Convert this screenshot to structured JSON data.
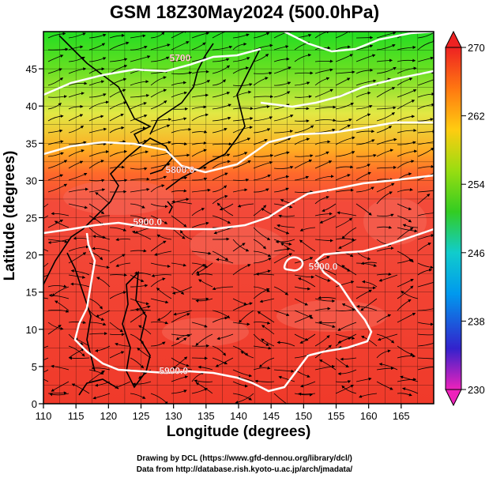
{
  "title": "GSM 18Z30May2024 (500.0hPa)",
  "xlabel": "Longitude (degrees)",
  "ylabel": "Latitude  (degrees)",
  "credits": [
    "Drawing by DCL (https://www.gfd-dennou.org/library/dcl/)",
    "Data from http://database.rish.kyoto-u.ac.jp/arch/jmadata/"
  ],
  "map": {
    "lon_range": [
      110,
      170
    ],
    "lat_range": [
      0,
      50
    ],
    "x_ticks": [
      "110",
      "115",
      "120",
      "125",
      "130",
      "135",
      "140",
      "145",
      "150",
      "155",
      "160",
      "165"
    ],
    "y_ticks": [
      "0",
      "5",
      "10",
      "15",
      "20",
      "25",
      "30",
      "35",
      "40",
      "45"
    ],
    "grid": true,
    "contour_color": "#ffffff",
    "coast_color": "#000000",
    "contour_labels": [
      {
        "text": "5900.0",
        "lon": 130,
        "lat": 4
      },
      {
        "text": "5900.0",
        "lon": 126,
        "lat": 24
      },
      {
        "text": "5800.0",
        "lon": 131,
        "lat": 31
      },
      {
        "text": "5700",
        "lon": 131,
        "lat": 46
      },
      {
        "text": "5900.0",
        "lon": 153,
        "lat": 18
      }
    ]
  },
  "colorbar": {
    "min": 230,
    "max": 270,
    "ticks": [
      "270",
      "262",
      "254",
      "246",
      "238",
      "230"
    ],
    "stops": [
      "#ee22bb",
      "#3322cc",
      "#0099ee",
      "#11cccc",
      "#33cc22",
      "#99dd11",
      "#ffcc11",
      "#ff7711",
      "#ee2222"
    ]
  }
}
